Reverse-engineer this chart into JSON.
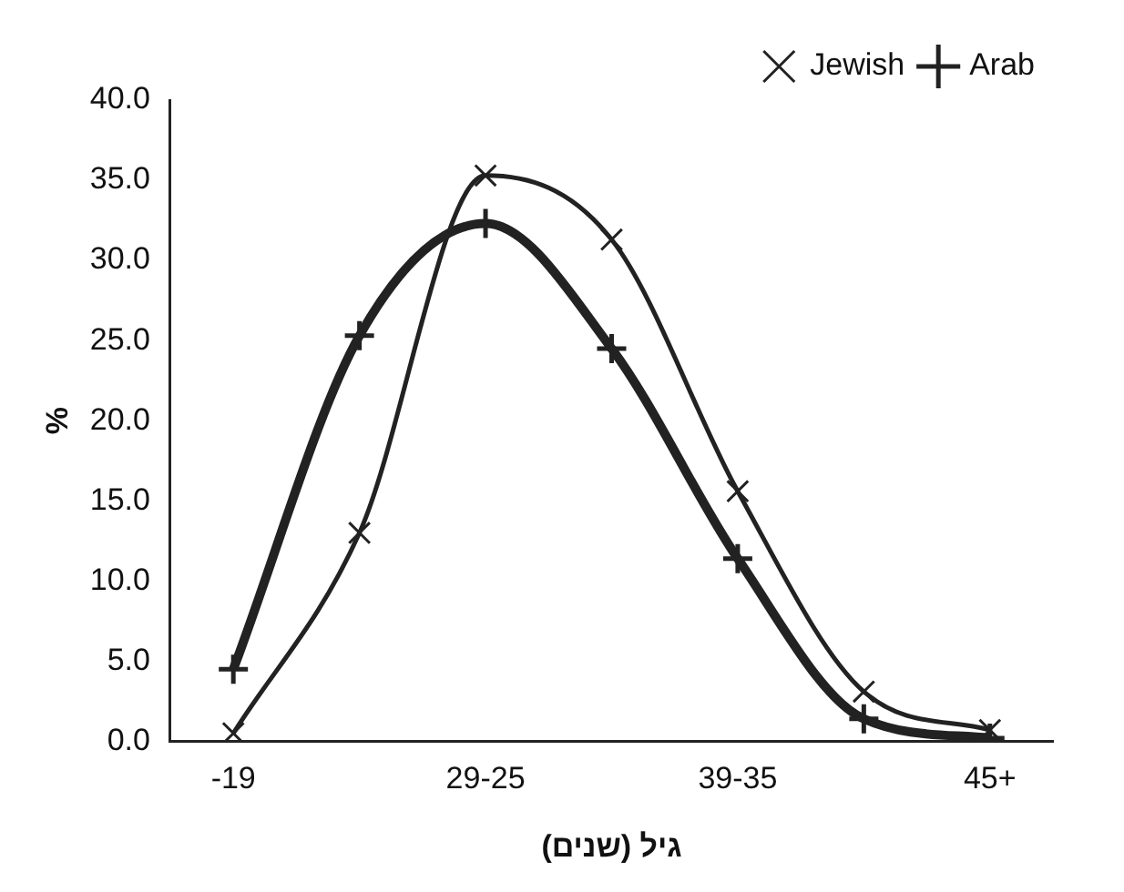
{
  "chart_data": {
    "type": "line",
    "xlabel": "גיל (שנים)",
    "ylabel": "%",
    "categories": [
      "-19",
      null,
      "29-25",
      null,
      "39-35",
      null,
      "45+"
    ],
    "series": [
      {
        "name": "Jewish",
        "color": "#222222",
        "values": [
          0.5,
          13.0,
          35.3,
          31.3,
          15.6,
          3.1,
          0.7
        ]
      },
      {
        "name": "Arab",
        "color": "#222222",
        "values": [
          4.5,
          25.3,
          32.3,
          24.5,
          11.4,
          1.4,
          0.2
        ]
      }
    ],
    "ylim": [
      0,
      40
    ],
    "yticks": [
      {
        "value": 0,
        "label": "0.0"
      },
      {
        "value": 5,
        "label": "5.0"
      },
      {
        "value": 10,
        "label": "10.0"
      },
      {
        "value": 15,
        "label": "15.0"
      },
      {
        "value": 20,
        "label": "20.0"
      },
      {
        "value": 25,
        "label": "25.0"
      },
      {
        "value": 30,
        "label": "30.0"
      },
      {
        "value": 35,
        "label": "35.0"
      },
      {
        "value": 40,
        "label": "40.0"
      }
    ],
    "grid": false,
    "legend": "top right",
    "marker": "cross"
  }
}
